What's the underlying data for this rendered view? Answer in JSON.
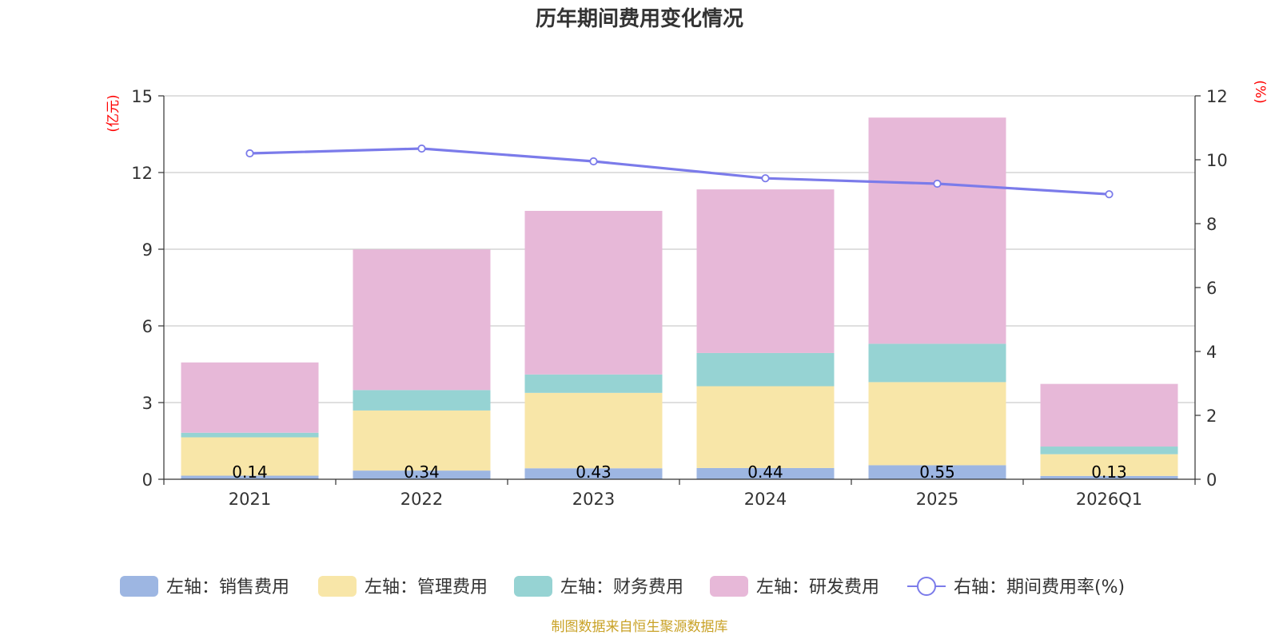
{
  "chart_data": {
    "type": "bar",
    "title": "历年期间费用变化情况",
    "categories": [
      "2021",
      "2022",
      "2023",
      "2024",
      "2025",
      "2026Q1"
    ],
    "left_axis": {
      "unit": "(亿元)",
      "ylim": [
        0,
        15
      ],
      "ticks": [
        0,
        3,
        6,
        9,
        12,
        15
      ]
    },
    "right_axis": {
      "unit": "(%)",
      "ylim": [
        0,
        12
      ],
      "ticks": [
        0,
        2,
        4,
        6,
        8,
        10,
        12
      ]
    },
    "series": [
      {
        "name": "左轴：销售费用",
        "type": "bar",
        "axis": "left",
        "color": "#9db6e2",
        "values": [
          0.14,
          0.34,
          0.43,
          0.44,
          0.55,
          0.13
        ],
        "labels": [
          "0.14",
          "0.34",
          "0.43",
          "0.44",
          "0.55",
          "0.13"
        ]
      },
      {
        "name": "左轴：管理费用",
        "type": "bar",
        "axis": "left",
        "color": "#f8e6a8",
        "values": [
          1.5,
          2.35,
          2.95,
          3.2,
          3.25,
          0.85
        ]
      },
      {
        "name": "左轴：财务费用",
        "type": "bar",
        "axis": "left",
        "color": "#96d3d3",
        "values": [
          0.18,
          0.8,
          0.72,
          1.3,
          1.5,
          0.3
        ]
      },
      {
        "name": "左轴：研发费用",
        "type": "bar",
        "axis": "left",
        "color": "#e7b8d8",
        "values": [
          2.75,
          5.5,
          6.4,
          6.4,
          8.85,
          2.45
        ]
      },
      {
        "name": "右轴：期间费用率(%)",
        "type": "line",
        "axis": "right",
        "color": "#7b7bea",
        "values": [
          10.2,
          10.35,
          9.95,
          9.42,
          9.25,
          8.92
        ]
      }
    ],
    "grid": true,
    "legend_position": "bottom"
  },
  "source_text": "制图数据来自恒生聚源数据库"
}
